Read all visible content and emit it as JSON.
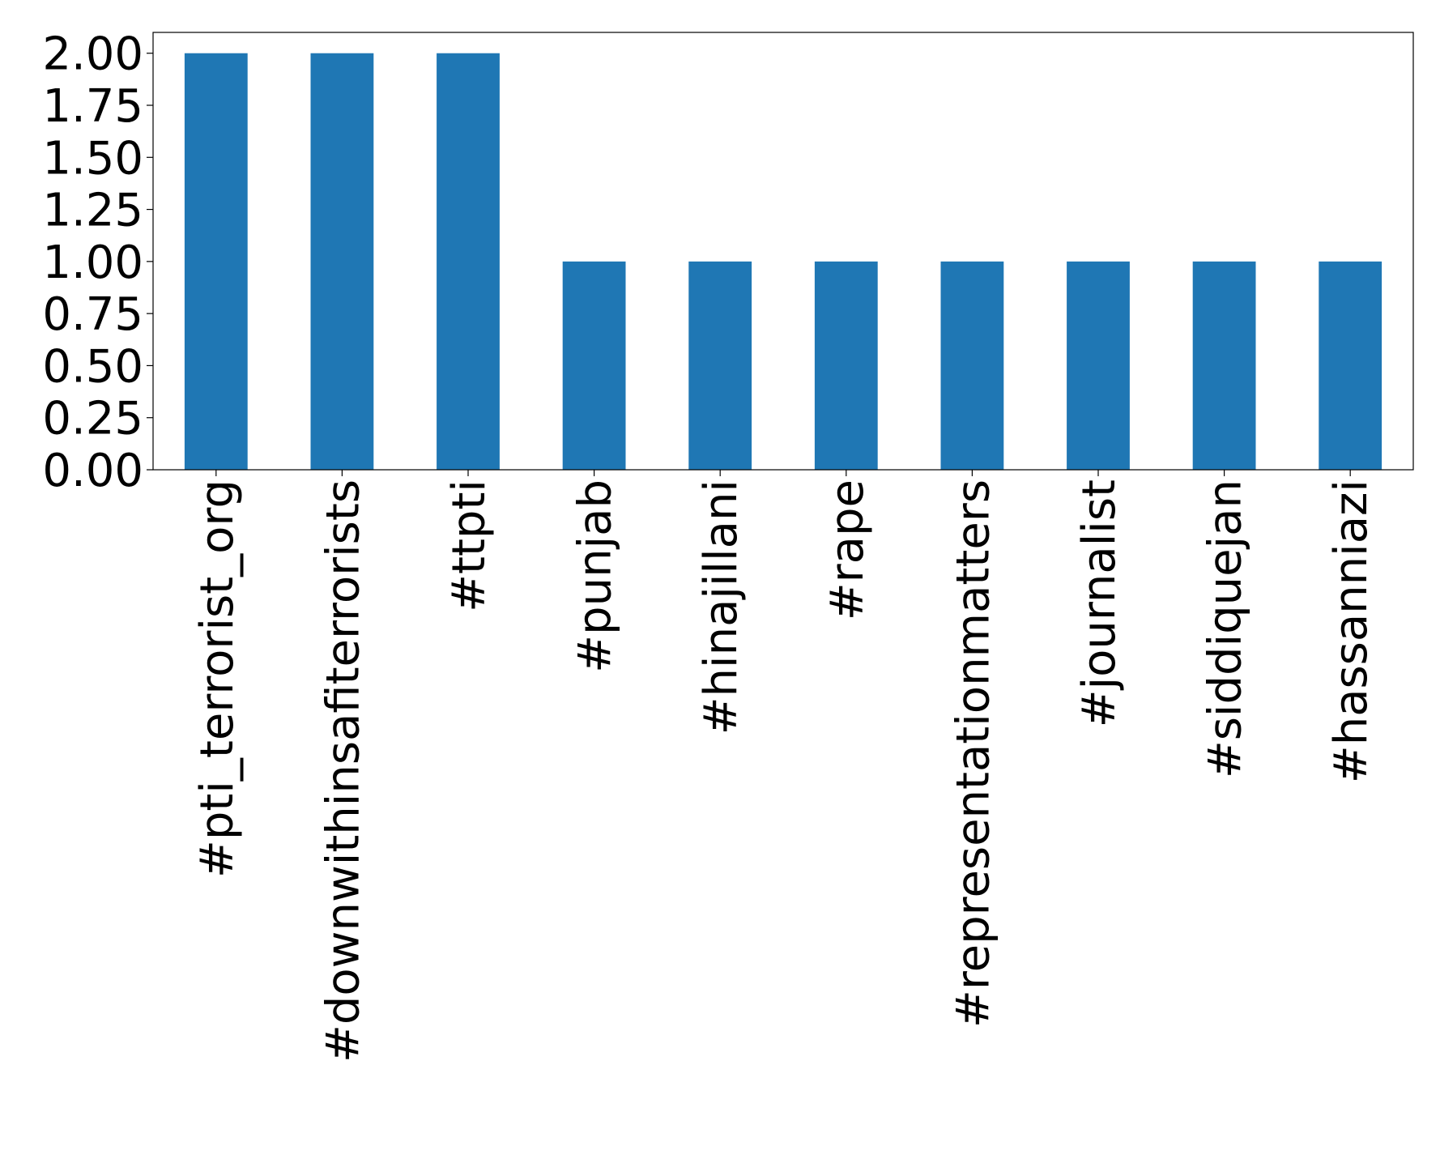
{
  "chart_data": {
    "type": "bar",
    "categories": [
      "#pti_terrorist_org",
      "#downwithinsafiterrorists",
      "#ttpti",
      "#punjab",
      "#hinajillani",
      "#rape",
      "#representationmatters",
      "#journalist",
      "#siddiquejan",
      "#hassanniazi"
    ],
    "values": [
      2,
      2,
      2,
      1,
      1,
      1,
      1,
      1,
      1,
      1
    ],
    "color": "#1f77b4",
    "ylim": [
      0,
      2.1
    ],
    "yticks": [
      {
        "value": 0,
        "label": "0.00"
      },
      0.25,
      {
        "value": 0.5,
        "label": "0.50"
      },
      0.75,
      {
        "value": 1,
        "label": "1.00"
      },
      1.25,
      {
        "value": 1.5,
        "label": "1.50"
      },
      1.75,
      {
        "value": 2,
        "label": "2.00"
      }
    ],
    "grid": false
  }
}
